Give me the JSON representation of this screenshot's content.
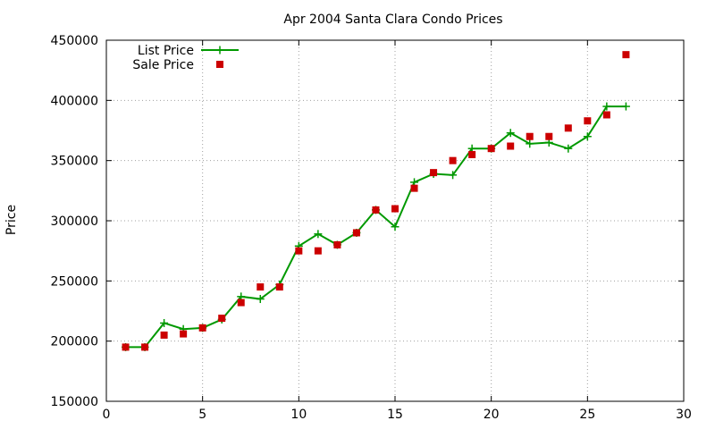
{
  "chart_data": {
    "type": "line",
    "title": "Apr 2004 Santa Clara Condo Prices",
    "xlabel": "",
    "ylabel": "Price",
    "xlim": [
      0,
      30
    ],
    "ylim": [
      150000,
      450000
    ],
    "xticks": [
      0,
      5,
      10,
      15,
      20,
      25,
      30
    ],
    "yticks": [
      150000,
      200000,
      250000,
      300000,
      350000,
      400000,
      450000
    ],
    "grid": true,
    "legend_position": "top-left",
    "series": [
      {
        "name": "List Price",
        "style": "line+cross",
        "color": "#009900",
        "x": [
          1,
          2,
          3,
          4,
          5,
          6,
          7,
          8,
          9,
          10,
          11,
          12,
          13,
          14,
          15,
          16,
          17,
          18,
          19,
          20,
          21,
          22,
          23,
          24,
          25,
          26,
          27
        ],
        "values": [
          195000,
          195000,
          215000,
          210000,
          211000,
          218000,
          237000,
          235000,
          247000,
          279000,
          289000,
          280000,
          290000,
          309000,
          295000,
          332000,
          339000,
          338000,
          360000,
          360000,
          373000,
          364000,
          365000,
          360000,
          370000,
          395000,
          395000
        ]
      },
      {
        "name": "Sale Price",
        "style": "square",
        "color": "#cc0000",
        "x": [
          1,
          2,
          3,
          4,
          5,
          6,
          7,
          8,
          9,
          10,
          11,
          12,
          13,
          14,
          15,
          16,
          17,
          18,
          19,
          20,
          21,
          22,
          23,
          24,
          25,
          26,
          27
        ],
        "values": [
          195000,
          195000,
          205000,
          206000,
          211000,
          219000,
          232000,
          245000,
          245000,
          275000,
          275000,
          280000,
          290000,
          309000,
          310000,
          327000,
          340000,
          350000,
          355000,
          360000,
          362000,
          370000,
          370000,
          377000,
          383000,
          388000,
          438000
        ]
      }
    ]
  }
}
